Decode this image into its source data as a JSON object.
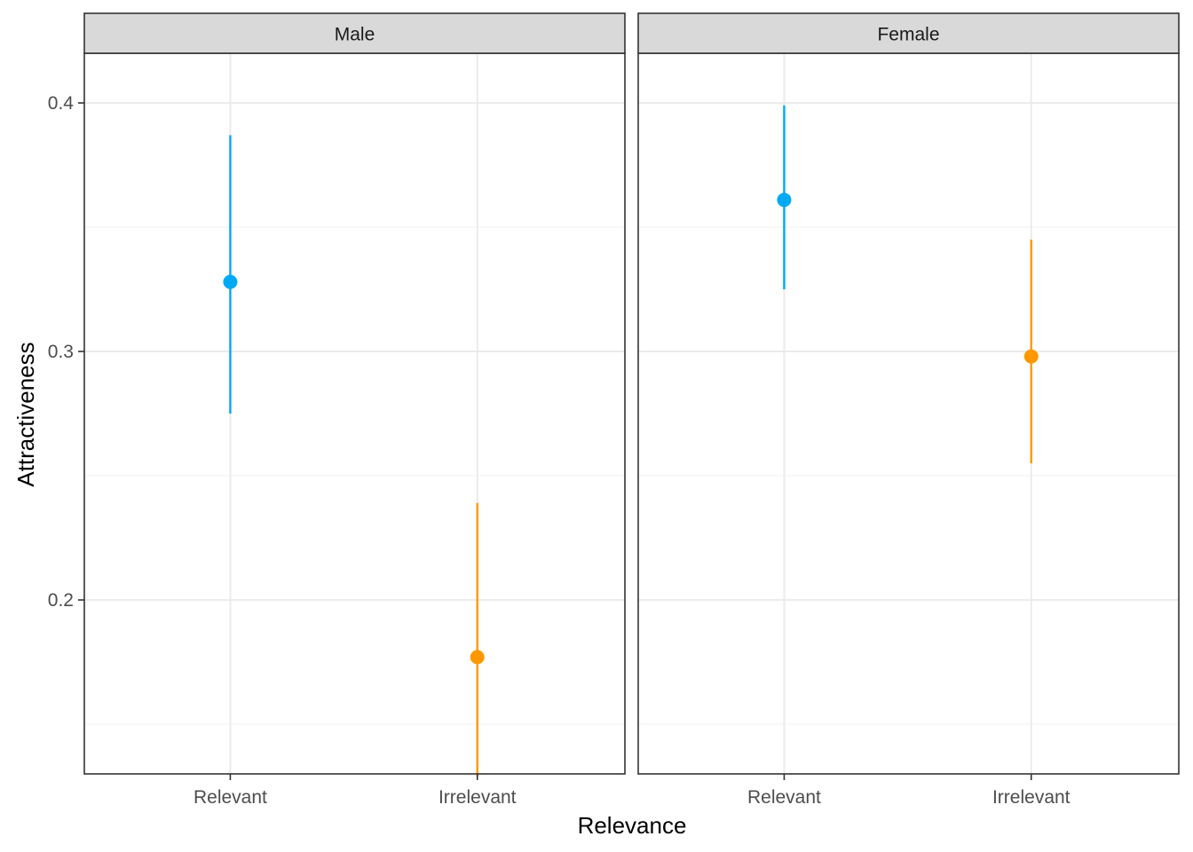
{
  "chart_data": {
    "type": "scatter",
    "subtype": "point-range faceted",
    "xlabel": "Relevance",
    "ylabel": "Attractiveness",
    "ylim": [
      0.13,
      0.42
    ],
    "yticks": [
      0.2,
      0.3,
      0.4
    ],
    "ytick_labels": [
      "0.2",
      "0.3",
      "0.4"
    ],
    "categories": [
      "Relevant",
      "Irrelevant"
    ],
    "colors": {
      "Relevant": "#00a9f4",
      "Irrelevant": "#ff9800"
    },
    "grid": true,
    "facets": [
      {
        "label": "Male",
        "points": [
          {
            "category": "Relevant",
            "value": 0.328,
            "low": 0.275,
            "high": 0.387
          },
          {
            "category": "Irrelevant",
            "value": 0.177,
            "low": 0.129,
            "high": 0.239
          }
        ]
      },
      {
        "label": "Female",
        "points": [
          {
            "category": "Relevant",
            "value": 0.361,
            "low": 0.325,
            "high": 0.399
          },
          {
            "category": "Irrelevant",
            "value": 0.298,
            "low": 0.255,
            "high": 0.345
          }
        ]
      }
    ]
  }
}
